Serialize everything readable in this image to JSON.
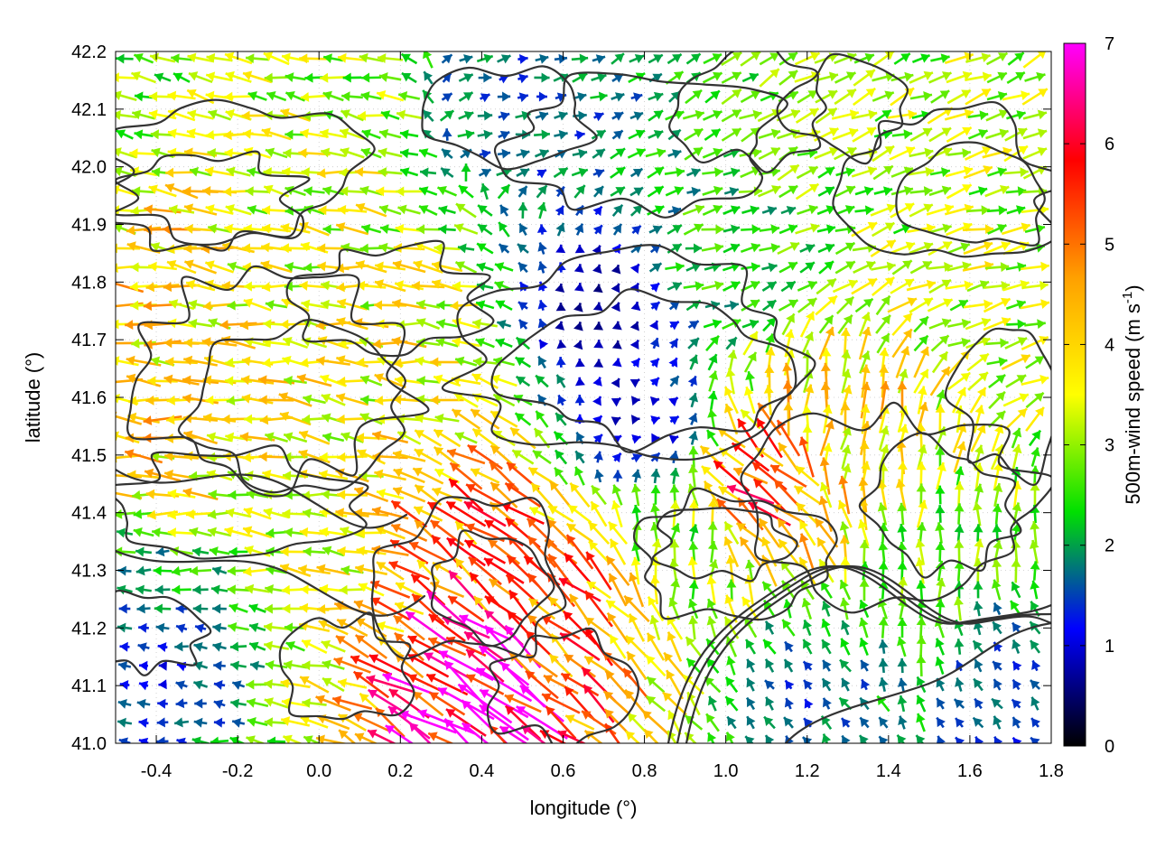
{
  "chart_data": {
    "type": "vector_field",
    "xlabel": "longitude (°)",
    "ylabel": "latitude (°)",
    "colorbar_label_main": "500m-wind speed (m s",
    "colorbar_label_sup": "-1",
    "colorbar_label_end": ")",
    "xlim": [
      -0.5,
      1.8
    ],
    "ylim": [
      41.0,
      42.2
    ],
    "xticks": [
      -0.4,
      -0.2,
      0.0,
      0.2,
      0.4,
      0.6,
      0.8,
      1.0,
      1.2,
      1.4,
      1.6,
      1.8
    ],
    "xtick_labels": [
      "-0.4",
      "-0.2",
      "0.0",
      "0.2",
      "0.4",
      "0.6",
      "0.8",
      "1.0",
      "1.2",
      "1.4",
      "1.6",
      "1.8"
    ],
    "yticks": [
      41.0,
      41.1,
      41.2,
      41.3,
      41.4,
      41.5,
      41.6,
      41.7,
      41.8,
      41.9,
      42.0,
      42.1,
      42.2
    ],
    "ytick_labels": [
      "41.0",
      "41.1",
      "41.2",
      "41.3",
      "41.4",
      "41.5",
      "41.6",
      "41.7",
      "41.8",
      "41.9",
      "42.0",
      "42.1",
      "42.2"
    ],
    "colorbar_range": [
      0,
      7
    ],
    "colorbar_ticks": [
      0,
      1,
      2,
      3,
      4,
      5,
      6,
      7
    ],
    "colorbar_tick_labels": [
      "0",
      "1",
      "2",
      "3",
      "4",
      "5",
      "6",
      "7"
    ],
    "colorscale": [
      "#000000",
      "#0000ff",
      "#00e000",
      "#ffff00",
      "#ffa000",
      "#ff0000",
      "#ff00ff"
    ],
    "grid": true,
    "vectors_estimated_sample": [
      {
        "lon": -0.45,
        "lat": 42.15,
        "u": -1.2,
        "v": 0.3,
        "speed": 2.9
      },
      {
        "lon": -0.4,
        "lat": 41.85,
        "u": -3.8,
        "v": 0.5,
        "speed": 4.0
      },
      {
        "lon": -0.4,
        "lat": 41.5,
        "u": -3.9,
        "v": 0.3,
        "speed": 4.0
      },
      {
        "lon": -0.4,
        "lat": 41.25,
        "u": -2.0,
        "v": 0.1,
        "speed": 2.0
      },
      {
        "lon": -0.4,
        "lat": 41.15,
        "u": -1.2,
        "v": 0.1,
        "speed": 1.2
      },
      {
        "lon": -0.2,
        "lat": 41.6,
        "u": -3.6,
        "v": 0.4,
        "speed": 3.8
      },
      {
        "lon": 0.0,
        "lat": 41.95,
        "u": -3.2,
        "v": 0.4,
        "speed": 3.4
      },
      {
        "lon": 0.0,
        "lat": 41.35,
        "u": -3.4,
        "v": 0.4,
        "speed": 3.5
      },
      {
        "lon": 0.2,
        "lat": 41.7,
        "u": -3.4,
        "v": 0.4,
        "speed": 3.6
      },
      {
        "lon": 0.4,
        "lat": 41.35,
        "u": -2.8,
        "v": 2.0,
        "speed": 5.2
      },
      {
        "lon": 0.4,
        "lat": 41.1,
        "u": -3.8,
        "v": 2.6,
        "speed": 6.8
      },
      {
        "lon": 0.5,
        "lat": 42.1,
        "u": 1.0,
        "v": 0.2,
        "speed": 1.6
      },
      {
        "lon": 0.6,
        "lat": 41.25,
        "u": -2.4,
        "v": 2.2,
        "speed": 5.0
      },
      {
        "lon": 0.7,
        "lat": 41.75,
        "u": 0.1,
        "v": 0.6,
        "speed": 0.6
      },
      {
        "lon": 0.8,
        "lat": 41.55,
        "u": 0.5,
        "v": 0.0,
        "speed": 0.8
      },
      {
        "lon": 0.9,
        "lat": 41.35,
        "u": 0.3,
        "v": 1.6,
        "speed": 2.8
      },
      {
        "lon": 1.0,
        "lat": 41.85,
        "u": 2.2,
        "v": 0.5,
        "speed": 2.4
      },
      {
        "lon": 1.1,
        "lat": 41.45,
        "u": -2.0,
        "v": 1.2,
        "speed": 5.4
      },
      {
        "lon": 1.2,
        "lat": 41.1,
        "u": -0.6,
        "v": 0.9,
        "speed": 1.6
      },
      {
        "lon": 1.3,
        "lat": 41.55,
        "u": 0.5,
        "v": 3.0,
        "speed": 4.0
      },
      {
        "lon": 1.4,
        "lat": 41.95,
        "u": 2.5,
        "v": 0.9,
        "speed": 3.0
      },
      {
        "lon": 1.5,
        "lat": 41.3,
        "u": 0.0,
        "v": 2.4,
        "speed": 2.8
      },
      {
        "lon": 1.7,
        "lat": 41.1,
        "u": -0.8,
        "v": 1.0,
        "speed": 1.5
      },
      {
        "lon": 1.7,
        "lat": 41.8,
        "u": 2.7,
        "v": 0.6,
        "speed": 3.2
      }
    ]
  }
}
